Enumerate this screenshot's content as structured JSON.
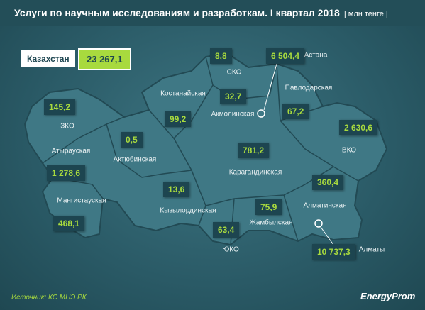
{
  "header": {
    "title": "Услуги по научным исследованиям и разработкам. I квартал 2018",
    "unit": "| млн тенге |"
  },
  "total": {
    "label": "Казахстан",
    "value": "23 267,1"
  },
  "regions": [
    {
      "name": "ЗКО",
      "value": "145,2"
    },
    {
      "name": "Атырауская",
      "value": "1 278,6"
    },
    {
      "name": "Мангистауская",
      "value": "468,1"
    },
    {
      "name": "Актюбинская",
      "value": "0,5"
    },
    {
      "name": "Костанайская",
      "value": "99,2"
    },
    {
      "name": "СКО",
      "value": "8,8"
    },
    {
      "name": "Акмолинская",
      "value": "32,7"
    },
    {
      "name": "Астана",
      "value": "6 504,4"
    },
    {
      "name": "Павлодарская",
      "value": "67,2"
    },
    {
      "name": "ВКО",
      "value": "2 630,6"
    },
    {
      "name": "Карагандинская",
      "value": "781,2"
    },
    {
      "name": "Кызылординская",
      "value": "13,6"
    },
    {
      "name": "Алматинская",
      "value": "360,4"
    },
    {
      "name": "Жамбылская",
      "value": "75,9"
    },
    {
      "name": "ЮКО",
      "value": "63,4"
    },
    {
      "name": "Алматы",
      "value": "10 737,3"
    }
  ],
  "source": "Источник: КС МНЭ РК",
  "logo": "EnergyProm"
}
